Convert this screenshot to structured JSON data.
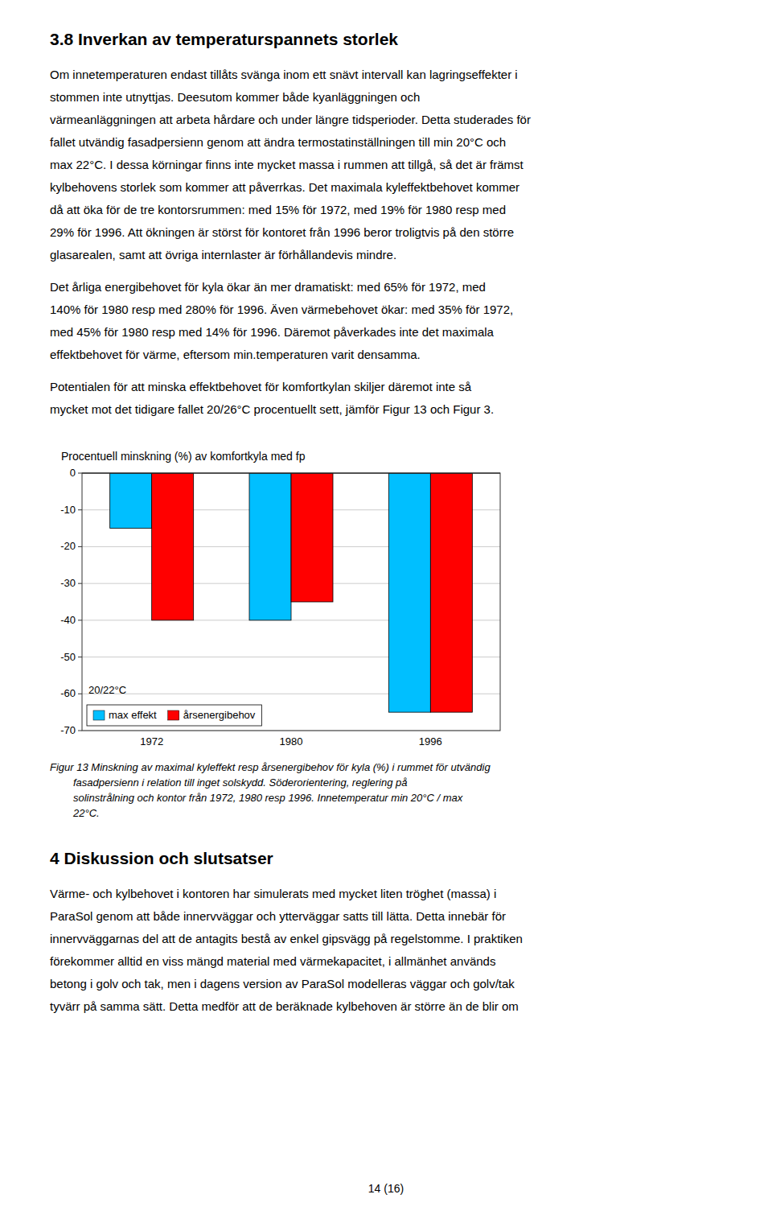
{
  "section_title": "3.8    Inverkan av temperaturspannets storlek",
  "body_paragraphs": [
    [
      "Om innetemperaturen endast tillåts svänga inom ett snävt intervall kan lagringseffekter i",
      "stommen inte utnyttjas. Deesutom kommer både kyanläggningen och",
      "värmeanläggningen att arbeta hårdare och under längre tidsperioder. Detta studerades för",
      "fallet utvändig fasadpersienn genom att ändra termostatinställningen till min 20°C och",
      "max 22°C. I dessa körningar finns inte mycket massa i rummen att tillgå, så det är främst",
      "kylbehovens storlek som kommer att påverrkas. Det maximala kyleffektbehovet kommer",
      "då att öka för de tre kontorsrummen: med 15% för 1972, med 19% för 1980 resp med",
      "29% för 1996. Att ökningen är störst för kontoret från 1996 beror troligtvis på den större",
      "glasarealen, samt att övriga internlaster är förhållandevis mindre."
    ],
    [
      "Det årliga energibehovet för kyla ökar än mer dramatiskt: med 65% för 1972, med",
      "140% för 1980 resp med 280% för 1996. Även värmebehovet ökar: med 35% för 1972,",
      "med 45% för 1980 resp med 14% för 1996. Däremot påverkades inte det maximala",
      "effektbehovet för värme, eftersom min.temperaturen varit densamma."
    ],
    [
      "Potentialen för att minska effektbehovet för komfortkylan skiljer däremot inte så",
      "mycket mot det tidigare fallet 20/26°C procentuellt sett, jämför Figur 13 och Figur 3."
    ]
  ],
  "chart_data": {
    "type": "bar",
    "title": "Procentuell minskning (%) av komfortkyla med fp",
    "categories": [
      "1972",
      "1980",
      "1996"
    ],
    "series": [
      {
        "name": "max effekt",
        "color": "#00BFFF",
        "values": [
          -15,
          -40,
          -65
        ]
      },
      {
        "name": "årsenergibehov",
        "color": "#FF0000",
        "values": [
          -40,
          -35,
          -65
        ]
      }
    ],
    "ylim": [
      -70,
      0
    ],
    "yticks": [
      0,
      -10,
      -20,
      -30,
      -40,
      -50,
      -60,
      -70
    ],
    "grid": true,
    "legend": "lower left",
    "annotation": "20/22°C"
  },
  "caption_lines": [
    "Figur 13 Minskning av maximal kyleffekt resp årsenergibehov för kyla (%) i rummet för utvändig",
    "fasadpersienn i relation till inget solskydd. Söderorientering, reglering på",
    "solinstrålning och kontor från 1972, 1980 resp 1996. Innetemperatur min 20°C / max",
    "22°C."
  ],
  "section4_title": "4    Diskussion och slutsatser",
  "section4_lines": [
    "Värme- och kylbehovet i kontoren har simulerats med mycket liten tröghet (massa) i",
    "ParaSol genom att både innervväggar och ytterväggar satts till lätta. Detta innebär för",
    "innervväggarnas del att de antagits bestå av enkel gipsvägg på regelstomme. I praktiken",
    "förekommer alltid en viss mängd material med värmekapacitet, i allmänhet används",
    "betong i golv och tak, men i dagens version av ParaSol modelleras väggar och golv/tak",
    "tyvärr på samma sätt. Detta medför att de beräknade kylbehoven är större än de blir om"
  ],
  "page_number": "14 (16)"
}
